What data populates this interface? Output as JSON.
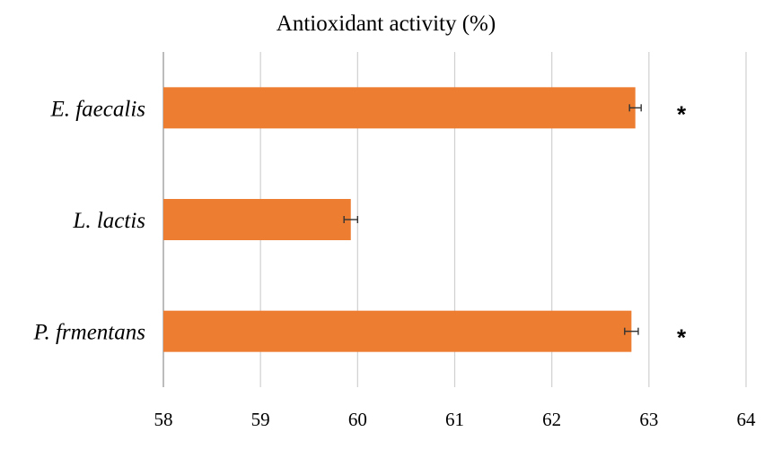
{
  "chart_data": {
    "type": "bar",
    "orientation": "horizontal",
    "title": "Antioxidant activity (%)",
    "xlabel": "",
    "ylabel": "",
    "categories": [
      "E. faecalis",
      "L. lactis",
      "P. frmentans"
    ],
    "values": [
      62.86,
      59.93,
      62.82
    ],
    "errors": [
      0.06,
      0.07,
      0.07
    ],
    "significance": [
      "*",
      "",
      "*"
    ],
    "xlim": [
      58,
      64
    ],
    "xticks": [
      "58",
      "59",
      "60",
      "61",
      "62",
      "63",
      "64"
    ],
    "grid": true,
    "legend": "none",
    "bar_color": "#ED7D31"
  }
}
